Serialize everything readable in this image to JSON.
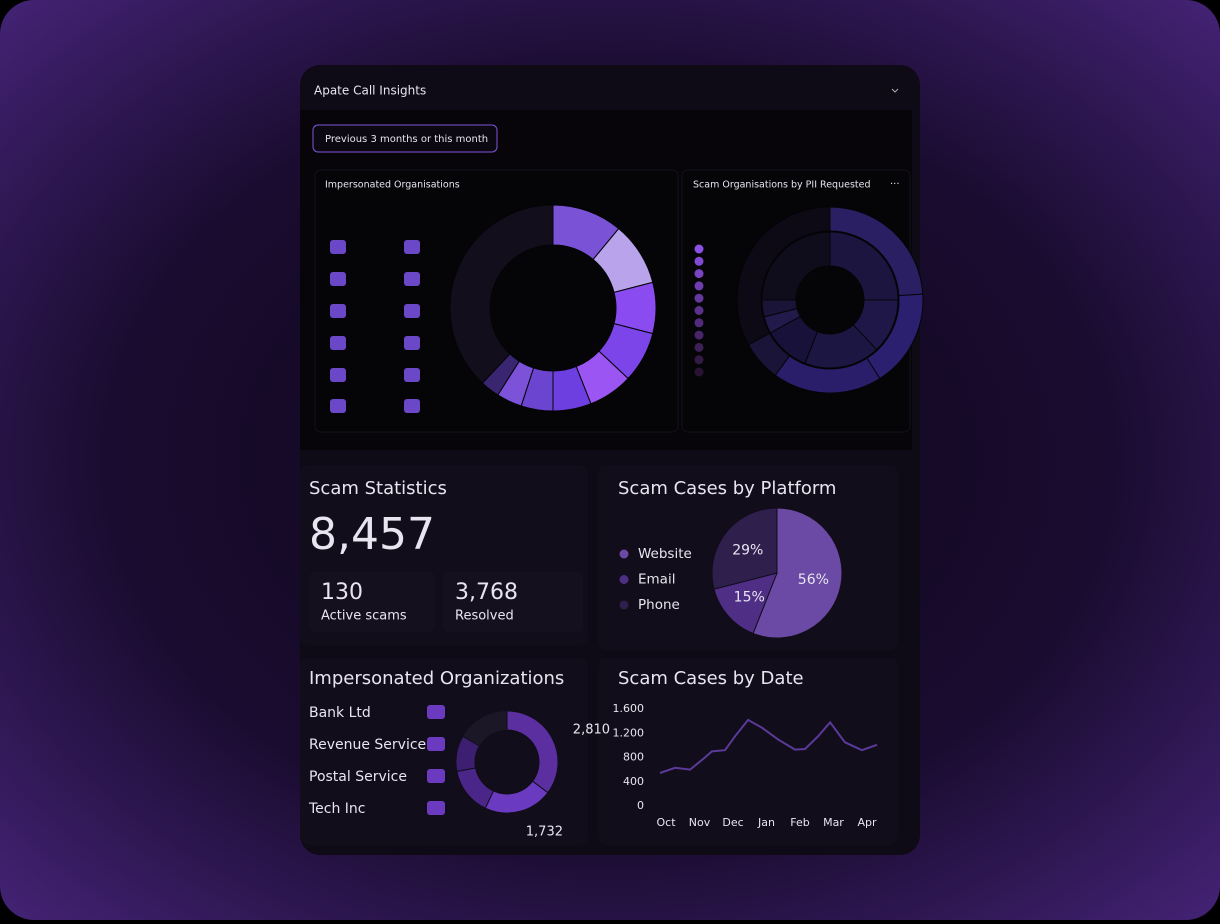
{
  "header": {
    "title": "Apate Call Insights"
  },
  "filter": {
    "label": "Previous 3 months or this month"
  },
  "stats": {
    "title": "Scam Statistics",
    "total": "8,457",
    "cards": [
      {
        "value": "130",
        "label": "Active scams"
      },
      {
        "value": "3,768",
        "label": "Resolved"
      }
    ]
  },
  "chart_data": [
    {
      "type": "donut",
      "title": "Impersonated Organisations",
      "values": [
        11,
        10,
        8,
        8,
        7,
        6,
        5,
        4,
        3,
        38
      ],
      "colors": [
        "#7a52d6",
        "#b9a4ec",
        "#8a4cf0",
        "#7b45ea",
        "#9a55f2",
        "#6e3fe0",
        "#6b44cf",
        "#7b52d8",
        "#3a2670",
        "#120e1c"
      ]
    },
    {
      "type": "sunburst",
      "title": "Scam Organisations by PII Requested",
      "rings": [
        {
          "values": [
            25,
            13,
            18,
            11,
            4,
            4,
            25
          ],
          "colors": [
            "#1b1540",
            "#1e1748",
            "#1c1642",
            "#18123a",
            "#221a4a",
            "#1a1438",
            "#0f0c1c"
          ]
        },
        {
          "values": [
            24,
            17,
            19,
            7,
            33
          ],
          "colors": [
            "#2a1f63",
            "#2b2070",
            "#2a1e6b",
            "#1a1438",
            "#0d0a16"
          ]
        }
      ]
    },
    {
      "type": "pie",
      "title": "Scam Cases by Platform",
      "categories": [
        "Website",
        "Email",
        "Phone"
      ],
      "values": [
        56,
        15,
        29
      ],
      "value_labels": [
        "56%",
        "15%",
        "29%"
      ],
      "colors": [
        "#6a4aa4",
        "#4f2f86",
        "#2e1f4d"
      ]
    },
    {
      "type": "donut",
      "title": "Impersonated Organizations",
      "categories": [
        "Bank Ltd",
        "Revenue Service",
        "Postal Service",
        "Tech Inc"
      ],
      "values": [
        2810,
        1732,
        1200,
        900
      ],
      "value_labels": [
        "2,810",
        "1,732",
        null,
        null
      ],
      "colors": [
        "#5b2fa0",
        "#6a3bc0",
        "#4a2689",
        "#3d1f72"
      ]
    },
    {
      "type": "line",
      "title": "Scam Cases by Date",
      "x": [
        -0.18,
        0.27,
        0.72,
        1.16,
        1.37,
        1.76,
        2.06,
        2.45,
        2.87,
        3.34,
        3.85,
        4.15,
        4.54,
        4.9,
        5.34,
        5.85,
        6.3
      ],
      "values": [
        545,
        630,
        600,
        800,
        900,
        920,
        1150,
        1420,
        1290,
        1100,
        930,
        940,
        1150,
        1380,
        1050,
        920,
        1010
      ],
      "xlim": [
        -0.18,
        6.3
      ],
      "xticks": [
        {
          "value": 0,
          "label": "Oct"
        },
        {
          "value": 1,
          "label": "Nov"
        },
        {
          "value": 2,
          "label": "Dec"
        },
        {
          "value": 3,
          "label": "Jan"
        },
        {
          "value": 4,
          "label": "Feb"
        },
        {
          "value": 5,
          "label": "Mar"
        },
        {
          "value": 6,
          "label": "Apr"
        }
      ],
      "ylim": [
        0,
        1600
      ],
      "yticks": [
        {
          "value": 1600,
          "label": "1.600"
        },
        {
          "value": 1200,
          "label": "1.200"
        },
        800,
        400,
        0
      ],
      "color": "#5a3a9a"
    }
  ]
}
